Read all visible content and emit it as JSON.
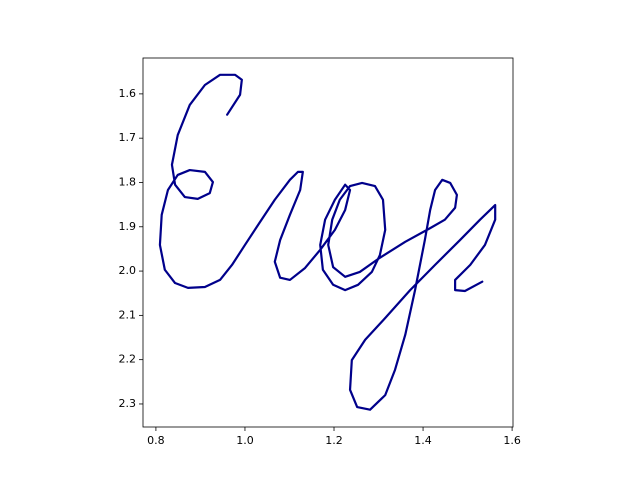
{
  "chart_data": {
    "type": "line",
    "x": [
      0.96,
      0.989,
      0.993,
      0.978,
      0.944,
      0.91,
      0.876,
      0.849,
      0.836,
      0.843,
      0.865,
      0.894,
      0.921,
      0.928,
      0.91,
      0.876,
      0.849,
      0.827,
      0.813,
      0.809,
      0.82,
      0.843,
      0.872,
      0.91,
      0.944,
      0.971,
      1.0,
      1.034,
      1.067,
      1.101,
      1.119,
      1.13,
      1.124,
      1.101,
      1.079,
      1.067,
      1.079,
      1.101,
      1.135,
      1.169,
      1.202,
      1.225,
      1.236,
      1.225,
      1.202,
      1.18,
      1.169,
      1.175,
      1.198,
      1.225,
      1.254,
      1.285,
      1.303,
      1.315,
      1.31,
      1.292,
      1.263,
      1.236,
      1.213,
      1.196,
      1.187,
      1.198,
      1.225,
      1.258,
      1.303,
      1.36,
      1.416,
      1.449,
      1.472,
      1.476,
      1.461,
      1.443,
      1.427,
      1.416,
      1.404,
      1.382,
      1.36,
      1.337,
      1.315,
      1.281,
      1.252,
      1.236,
      1.24,
      1.27,
      1.315,
      1.371,
      1.427,
      1.483,
      1.528,
      1.562,
      1.562,
      1.539,
      1.506,
      1.472,
      1.472,
      1.494,
      1.533
    ],
    "series": [
      {
        "color": "#00008b",
        "values": [
          1.647,
          1.602,
          1.568,
          1.557,
          1.557,
          1.58,
          1.625,
          1.693,
          1.76,
          1.805,
          1.833,
          1.837,
          1.824,
          1.799,
          1.776,
          1.772,
          1.783,
          1.817,
          1.873,
          1.941,
          1.997,
          2.027,
          2.038,
          2.036,
          2.02,
          1.986,
          1.941,
          1.889,
          1.839,
          1.794,
          1.776,
          1.776,
          1.817,
          1.873,
          1.93,
          1.979,
          2.015,
          2.02,
          1.993,
          1.952,
          1.907,
          1.862,
          1.817,
          1.805,
          1.839,
          1.884,
          1.941,
          1.997,
          2.031,
          2.043,
          2.031,
          2.002,
          1.964,
          1.907,
          1.839,
          1.808,
          1.801,
          1.808,
          1.839,
          1.884,
          1.941,
          1.991,
          2.013,
          2.002,
          1.97,
          1.934,
          1.903,
          1.884,
          1.857,
          1.828,
          1.801,
          1.794,
          1.817,
          1.862,
          1.93,
          2.043,
          2.144,
          2.223,
          2.28,
          2.313,
          2.307,
          2.268,
          2.201,
          2.155,
          2.106,
          2.043,
          1.986,
          1.93,
          1.884,
          1.851,
          1.884,
          1.941,
          1.986,
          2.02,
          2.043,
          2.045,
          2.024
        ]
      }
    ],
    "xlim": [
      0.771,
      1.602
    ],
    "ylim": [
      2.352,
      1.519
    ],
    "xticks": [
      0.8,
      {
        "value": 1,
        "label": "1.0"
      },
      1.2,
      1.4,
      1.6
    ],
    "yticks": [
      1.6,
      1.7,
      1.8,
      1.9,
      {
        "value": 2,
        "label": "2.0"
      },
      2.1,
      2.2,
      2.3
    ],
    "grid": false
  }
}
